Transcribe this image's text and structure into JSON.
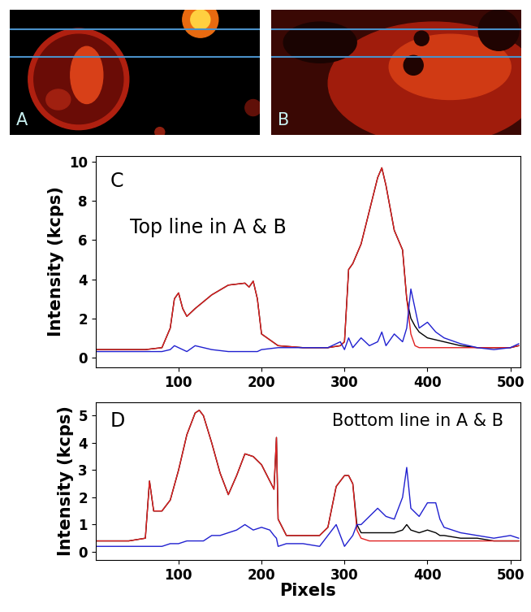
{
  "image_panels": [
    {
      "label": "A"
    },
    {
      "label": "B"
    }
  ],
  "chart_data": [
    {
      "type": "line",
      "annotations": [
        "C",
        "Top line in A & B"
      ],
      "y_label": "Intensity (kcps)",
      "xlim": [
        0,
        512
      ],
      "xticks": [
        100,
        200,
        300,
        400,
        500
      ],
      "ylim": [
        -0.5,
        10.3
      ],
      "yticks": [
        0,
        2,
        4,
        6,
        8,
        10
      ],
      "x": [
        0,
        20,
        40,
        60,
        80,
        90,
        95,
        100,
        105,
        110,
        120,
        140,
        160,
        180,
        185,
        190,
        195,
        200,
        220,
        250,
        280,
        295,
        300,
        305,
        310,
        320,
        330,
        340,
        345,
        350,
        360,
        370,
        375,
        380,
        385,
        390,
        400,
        410,
        420,
        440,
        460,
        480,
        500,
        510
      ],
      "series": [
        {
          "color": "#000000",
          "values": [
            0.4,
            0.4,
            0.4,
            0.4,
            0.5,
            1.5,
            3.0,
            3.3,
            2.5,
            2.1,
            2.5,
            3.2,
            3.7,
            3.8,
            3.6,
            3.9,
            3.0,
            1.2,
            0.6,
            0.5,
            0.5,
            0.6,
            0.8,
            4.5,
            4.8,
            5.8,
            7.5,
            9.2,
            9.7,
            8.8,
            6.5,
            5.5,
            3.0,
            2.0,
            1.6,
            1.3,
            1.0,
            0.9,
            0.8,
            0.6,
            0.5,
            0.5,
            0.5,
            0.6
          ]
        },
        {
          "color": "#e02020",
          "values": [
            0.4,
            0.4,
            0.4,
            0.4,
            0.5,
            1.5,
            3.0,
            3.3,
            2.5,
            2.1,
            2.5,
            3.2,
            3.7,
            3.8,
            3.6,
            3.9,
            3.0,
            1.2,
            0.6,
            0.5,
            0.5,
            0.6,
            0.8,
            4.5,
            4.8,
            5.8,
            7.5,
            9.2,
            9.7,
            8.8,
            6.5,
            5.5,
            3.0,
            1.2,
            0.6,
            0.5,
            0.5,
            0.5,
            0.5,
            0.5,
            0.5,
            0.5,
            0.5,
            0.6
          ]
        },
        {
          "color": "#2020d0",
          "values": [
            0.3,
            0.3,
            0.3,
            0.3,
            0.3,
            0.4,
            0.6,
            0.5,
            0.4,
            0.3,
            0.6,
            0.4,
            0.3,
            0.3,
            0.3,
            0.3,
            0.3,
            0.4,
            0.5,
            0.5,
            0.5,
            0.8,
            0.4,
            1.0,
            0.5,
            1.0,
            0.6,
            0.8,
            1.3,
            0.6,
            1.2,
            0.8,
            1.5,
            3.5,
            2.5,
            1.5,
            1.8,
            1.3,
            1.0,
            0.7,
            0.5,
            0.4,
            0.5,
            0.7
          ]
        }
      ]
    },
    {
      "type": "line",
      "annotations": [
        "D",
        "Bottom line in A & B"
      ],
      "y_label": "Intensity (kcps)",
      "x_label": "Pixels",
      "xlim": [
        0,
        512
      ],
      "xticks": [
        100,
        200,
        300,
        400,
        500
      ],
      "ylim": [
        -0.3,
        5.5
      ],
      "yticks": [
        0,
        1,
        2,
        3,
        4,
        5
      ],
      "x": [
        0,
        20,
        40,
        60,
        65,
        70,
        80,
        90,
        100,
        110,
        120,
        125,
        130,
        140,
        150,
        160,
        170,
        180,
        190,
        200,
        210,
        215,
        218,
        220,
        230,
        250,
        270,
        280,
        290,
        300,
        305,
        310,
        315,
        320,
        330,
        340,
        350,
        360,
        370,
        375,
        380,
        390,
        400,
        410,
        415,
        420,
        440,
        460,
        480,
        500,
        510
      ],
      "series": [
        {
          "color": "#000000",
          "values": [
            0.4,
            0.4,
            0.4,
            0.5,
            2.6,
            1.5,
            1.5,
            1.9,
            3.0,
            4.3,
            5.1,
            5.2,
            5.0,
            4.0,
            2.9,
            2.1,
            2.8,
            3.6,
            3.5,
            3.2,
            2.6,
            2.3,
            4.2,
            1.2,
            0.6,
            0.6,
            0.6,
            0.9,
            2.4,
            2.8,
            2.8,
            2.5,
            1.0,
            0.7,
            0.7,
            0.7,
            0.7,
            0.7,
            0.8,
            1.0,
            0.8,
            0.7,
            0.8,
            0.7,
            0.6,
            0.6,
            0.5,
            0.5,
            0.4,
            0.4,
            0.4
          ]
        },
        {
          "color": "#e02020",
          "values": [
            0.4,
            0.4,
            0.4,
            0.5,
            2.6,
            1.5,
            1.5,
            1.9,
            3.0,
            4.3,
            5.1,
            5.2,
            5.0,
            4.0,
            2.9,
            2.1,
            2.8,
            3.6,
            3.5,
            3.2,
            2.6,
            2.3,
            4.2,
            1.2,
            0.6,
            0.6,
            0.6,
            0.9,
            2.4,
            2.8,
            2.8,
            2.5,
            0.8,
            0.5,
            0.4,
            0.4,
            0.4,
            0.4,
            0.4,
            0.4,
            0.4,
            0.4,
            0.4,
            0.4,
            0.4,
            0.4,
            0.4,
            0.4,
            0.4,
            0.4,
            0.4
          ]
        },
        {
          "color": "#2020d0",
          "values": [
            0.2,
            0.2,
            0.2,
            0.2,
            0.2,
            0.2,
            0.2,
            0.3,
            0.3,
            0.4,
            0.4,
            0.4,
            0.4,
            0.6,
            0.6,
            0.7,
            0.8,
            1.0,
            0.8,
            0.9,
            0.8,
            0.6,
            0.5,
            0.2,
            0.3,
            0.3,
            0.2,
            0.6,
            1.0,
            0.2,
            0.4,
            0.6,
            1.0,
            1.0,
            1.3,
            1.6,
            1.3,
            1.2,
            2.0,
            3.1,
            1.6,
            1.3,
            1.8,
            1.8,
            1.2,
            0.9,
            0.7,
            0.6,
            0.5,
            0.6,
            0.5
          ]
        }
      ]
    }
  ]
}
